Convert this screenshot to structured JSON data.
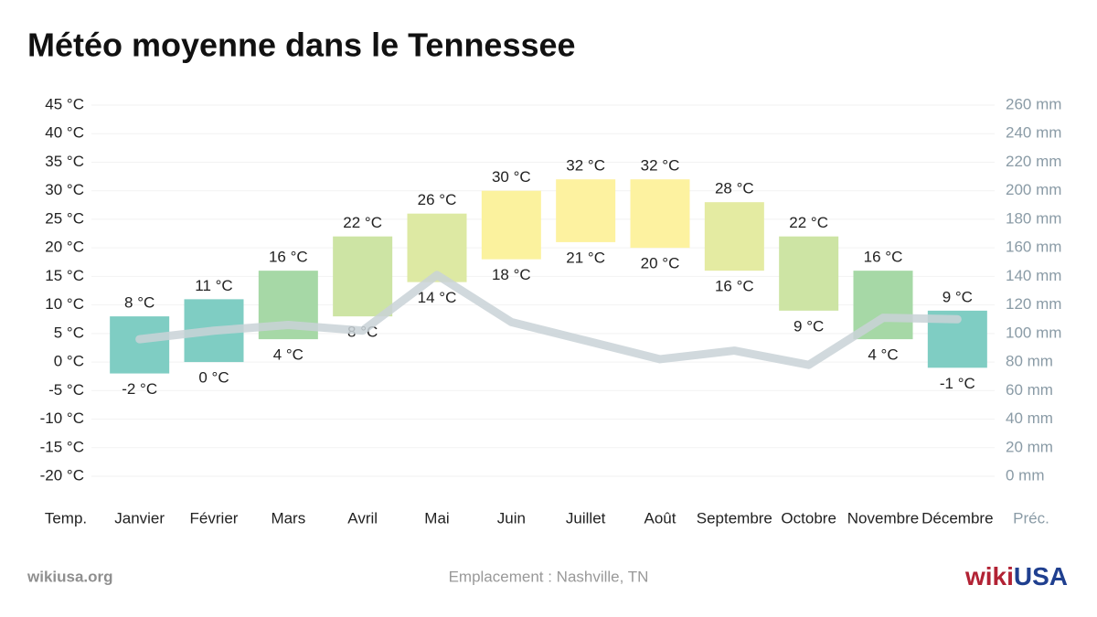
{
  "chart_data": {
    "type": "range-bar",
    "title": "Météo moyenne dans le Tennessee",
    "categories": [
      "Janvier",
      "Février",
      "Mars",
      "Avril",
      "Mai",
      "Juin",
      "Juillet",
      "Août",
      "Septembre",
      "Octobre",
      "Novembre",
      "Décembre"
    ],
    "max": {
      "values": [
        8,
        11,
        16,
        22,
        26,
        30,
        32,
        32,
        28,
        22,
        16,
        9
      ],
      "value_labels": [
        "8 °C",
        "11 °C",
        "16 °C",
        "22 °C",
        "26 °C",
        "30 °C",
        "32 °C",
        "32 °C",
        "28 °C",
        "22 °C",
        "16 °C",
        "9 °C"
      ]
    },
    "min": {
      "values": [
        -2,
        0,
        4,
        8,
        14,
        18,
        21,
        20,
        16,
        9,
        4,
        -1
      ],
      "value_labels": [
        "-2 °C",
        "0 °C",
        "4 °C",
        "8 °C",
        "14 °C",
        "18 °C",
        "21 °C",
        "20 °C",
        "16 °C",
        "9 °C",
        "4 °C",
        "-1 °C"
      ]
    },
    "colors": [
      "#7fcdc3",
      "#7fcdc3",
      "#a6d8a6",
      "#cde4a4",
      "#dde9a3",
      "#fbf29e",
      "#fdf2a0",
      "#fdf2a0",
      "#e4eba2",
      "#cde4a4",
      "#a6d8a6",
      "#7fcdc3"
    ],
    "precipitation": {
      "values": [
        96,
        102,
        106,
        102,
        141,
        108,
        95,
        82,
        88,
        78,
        111,
        110
      ],
      "color": "#c9d2d7",
      "axis": "y2"
    },
    "ylim": [
      -20,
      45
    ],
    "yticks": [
      {
        "value": -20,
        "label": "-20 °C"
      },
      {
        "value": -15,
        "label": "-15 °C"
      },
      {
        "value": -10,
        "label": "-10 °C"
      },
      {
        "value": -5,
        "label": "-5 °C"
      },
      {
        "value": 0,
        "label": "0 °C"
      },
      {
        "value": 5,
        "label": "5 °C"
      },
      {
        "value": 10,
        "label": "10 °C"
      },
      {
        "value": 15,
        "label": "15 °C"
      },
      {
        "value": 20,
        "label": "20 °C"
      },
      {
        "value": 25,
        "label": "25 °C"
      },
      {
        "value": 30,
        "label": "30 °C"
      },
      {
        "value": 35,
        "label": "35 °C"
      },
      {
        "value": 40,
        "label": "40 °C"
      },
      {
        "value": 45,
        "label": "45 °C"
      }
    ],
    "y2lim": [
      0,
      260
    ],
    "y2ticks": [
      {
        "value": 0,
        "label": "0 mm"
      },
      {
        "value": 20,
        "label": "20 mm"
      },
      {
        "value": 40,
        "label": "40 mm"
      },
      {
        "value": 60,
        "label": "60 mm"
      },
      {
        "value": 80,
        "label": "80 mm"
      },
      {
        "value": 100,
        "label": "100 mm"
      },
      {
        "value": 120,
        "label": "120 mm"
      },
      {
        "value": 140,
        "label": "140 mm"
      },
      {
        "value": 160,
        "label": "160 mm"
      },
      {
        "value": 180,
        "label": "180 mm"
      },
      {
        "value": 200,
        "label": "200 mm"
      },
      {
        "value": 220,
        "label": "220 mm"
      },
      {
        "value": 240,
        "label": "240 mm"
      },
      {
        "value": 260,
        "label": "260 mm"
      }
    ],
    "y_label": "Temp.",
    "y2_label": "Préc.",
    "grid": true
  },
  "footer": {
    "site": "wikiusa.org",
    "location": "Emplacement : Nashville, TN",
    "logo": [
      "wiki",
      "USA"
    ]
  }
}
